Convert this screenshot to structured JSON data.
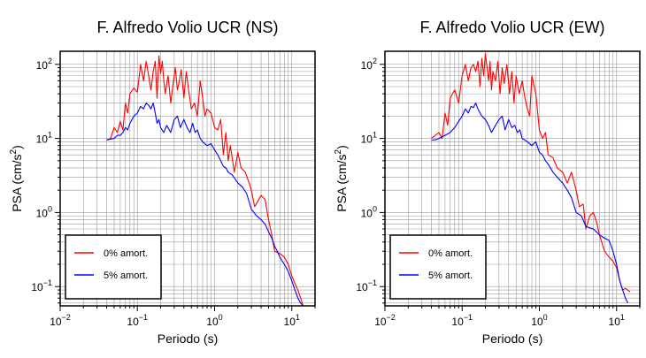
{
  "chart_data": [
    {
      "type": "line",
      "title": "F. Alfredo Volio UCR (NS)",
      "xlabel": "Periodo (s)",
      "ylabel_main": "PSA (cm/s",
      "ylabel_sup": "2",
      "ylabel_end": ")",
      "xscale": "log",
      "yscale": "log",
      "xlim": [
        0.01,
        20
      ],
      "ylim": [
        0.055,
        150
      ],
      "grid": true,
      "legend_position": "bottom-left",
      "x_ticks": [
        {
          "value": 0.01,
          "base": "10",
          "exp": "−2"
        },
        {
          "value": 0.1,
          "base": "10",
          "exp": "−1"
        },
        {
          "value": 1,
          "base": "10",
          "exp": "0"
        },
        {
          "value": 10,
          "base": "10",
          "exp": "1"
        }
      ],
      "y_ticks": [
        {
          "value": 0.1,
          "base": "10",
          "exp": "−1"
        },
        {
          "value": 1,
          "base": "10",
          "exp": "0"
        },
        {
          "value": 10,
          "base": "10",
          "exp": "1"
        },
        {
          "value": 100,
          "base": "10",
          "exp": "2"
        }
      ],
      "series": [
        {
          "name": "0% amort.",
          "color": "#ff0000",
          "x": [
            0.04,
            0.045,
            0.05,
            0.055,
            0.06,
            0.065,
            0.07,
            0.075,
            0.08,
            0.09,
            0.1,
            0.11,
            0.12,
            0.13,
            0.14,
            0.15,
            0.16,
            0.17,
            0.18,
            0.19,
            0.2,
            0.21,
            0.22,
            0.23,
            0.24,
            0.25,
            0.27,
            0.29,
            0.31,
            0.33,
            0.35,
            0.37,
            0.4,
            0.43,
            0.46,
            0.5,
            0.55,
            0.6,
            0.65,
            0.7,
            0.75,
            0.8,
            0.9,
            1.0,
            1.1,
            1.2,
            1.3,
            1.4,
            1.5,
            1.6,
            1.8,
            2.0,
            2.2,
            2.5,
            2.8,
            3.0,
            3.3,
            3.6,
            4.0,
            4.5,
            5.0,
            5.5,
            6.0,
            7.0,
            8.0,
            9.0,
            10.0,
            11.0,
            12.0,
            13.0,
            14.0
          ],
          "y": [
            9.5,
            10,
            14,
            12,
            17,
            13,
            30,
            22,
            40,
            48,
            42,
            100,
            60,
            110,
            70,
            45,
            80,
            110,
            35,
            130,
            75,
            110,
            60,
            40,
            55,
            70,
            30,
            55,
            90,
            45,
            60,
            85,
            35,
            80,
            45,
            25,
            30,
            20,
            60,
            35,
            20,
            25,
            22,
            14,
            13,
            18,
            6,
            12,
            5,
            8,
            3.5,
            6.5,
            4,
            3.5,
            2.5,
            2,
            1.2,
            1.4,
            1.7,
            1.5,
            0.8,
            0.5,
            0.3,
            0.28,
            0.25,
            0.2,
            0.14,
            0.11,
            0.09,
            0.07,
            0.055
          ]
        },
        {
          "name": "5% amort.",
          "color": "#0000ff",
          "x": [
            0.04,
            0.045,
            0.05,
            0.055,
            0.06,
            0.065,
            0.07,
            0.075,
            0.08,
            0.09,
            0.1,
            0.11,
            0.12,
            0.13,
            0.14,
            0.15,
            0.16,
            0.17,
            0.18,
            0.19,
            0.2,
            0.22,
            0.24,
            0.27,
            0.3,
            0.33,
            0.36,
            0.4,
            0.44,
            0.48,
            0.52,
            0.56,
            0.6,
            0.65,
            0.7,
            0.8,
            0.9,
            1.0,
            1.1,
            1.2,
            1.3,
            1.4,
            1.5,
            1.7,
            2.0,
            2.3,
            2.6,
            3.0,
            3.5,
            4.0,
            4.5,
            5.0,
            5.5,
            6.0,
            6.5,
            7.0,
            8.0,
            9.0,
            10.0,
            11.0,
            12.0,
            13.0,
            14.0
          ],
          "y": [
            9.5,
            9.8,
            10,
            11,
            11,
            12,
            14,
            13,
            16,
            20,
            22,
            27,
            25,
            30,
            28,
            25,
            30,
            22,
            16,
            18,
            14,
            12,
            15,
            12,
            18,
            20,
            14,
            18,
            14,
            12,
            16,
            12,
            13,
            10,
            9,
            8,
            8.5,
            7,
            6,
            5,
            4.2,
            4,
            3.5,
            3.2,
            2.5,
            2.2,
            1.8,
            1.1,
            0.9,
            0.8,
            0.7,
            0.55,
            0.45,
            0.35,
            0.3,
            0.25,
            0.2,
            0.16,
            0.12,
            0.09,
            0.07,
            0.06,
            0.055
          ]
        }
      ]
    },
    {
      "type": "line",
      "title": "F. Alfredo Volio UCR (EW)",
      "xlabel": "Periodo (s)",
      "ylabel_main": "PSA (cm/s",
      "ylabel_sup": "2",
      "ylabel_end": ")",
      "xscale": "log",
      "yscale": "log",
      "xlim": [
        0.01,
        20
      ],
      "ylim": [
        0.055,
        150
      ],
      "grid": true,
      "legend_position": "bottom-left",
      "x_ticks": [
        {
          "value": 0.01,
          "base": "10",
          "exp": "−2"
        },
        {
          "value": 0.1,
          "base": "10",
          "exp": "−1"
        },
        {
          "value": 1,
          "base": "10",
          "exp": "0"
        },
        {
          "value": 10,
          "base": "10",
          "exp": "1"
        }
      ],
      "y_ticks": [
        {
          "value": 0.1,
          "base": "10",
          "exp": "−1"
        },
        {
          "value": 1,
          "base": "10",
          "exp": "0"
        },
        {
          "value": 10,
          "base": "10",
          "exp": "1"
        },
        {
          "value": 100,
          "base": "10",
          "exp": "2"
        }
      ],
      "series": [
        {
          "name": "0% amort.",
          "color": "#ff0000",
          "x": [
            0.04,
            0.045,
            0.05,
            0.055,
            0.06,
            0.065,
            0.07,
            0.075,
            0.08,
            0.09,
            0.1,
            0.11,
            0.12,
            0.13,
            0.14,
            0.15,
            0.16,
            0.17,
            0.18,
            0.19,
            0.2,
            0.21,
            0.22,
            0.23,
            0.24,
            0.25,
            0.27,
            0.29,
            0.31,
            0.33,
            0.35,
            0.38,
            0.41,
            0.44,
            0.47,
            0.5,
            0.55,
            0.6,
            0.65,
            0.7,
            0.75,
            0.8,
            0.9,
            1.0,
            1.1,
            1.2,
            1.3,
            1.5,
            1.7,
            2.0,
            2.3,
            2.6,
            3.0,
            3.3,
            3.7,
            4.0,
            4.5,
            5.0,
            5.5,
            6.0,
            7.0,
            8.0,
            9.0,
            10.0,
            11.0,
            12.0,
            13.0,
            15.0
          ],
          "y": [
            10,
            11,
            12,
            10,
            22,
            15,
            35,
            40,
            45,
            30,
            70,
            100,
            60,
            90,
            100,
            80,
            110,
            50,
            120,
            70,
            140,
            90,
            60,
            110,
            45,
            80,
            60,
            110,
            40,
            90,
            55,
            100,
            40,
            80,
            30,
            70,
            40,
            60,
            35,
            25,
            20,
            70,
            40,
            13,
            10,
            12,
            6,
            5.5,
            4,
            3.5,
            2.5,
            3.5,
            2,
            1.2,
            1.3,
            0.6,
            0.9,
            1.0,
            0.75,
            0.5,
            0.3,
            0.25,
            0.22,
            0.18,
            0.12,
            0.09,
            0.095,
            0.085
          ]
        },
        {
          "name": "5% amort.",
          "color": "#0000ff",
          "x": [
            0.04,
            0.045,
            0.05,
            0.055,
            0.06,
            0.07,
            0.08,
            0.09,
            0.1,
            0.11,
            0.12,
            0.13,
            0.14,
            0.15,
            0.16,
            0.18,
            0.2,
            0.22,
            0.24,
            0.27,
            0.3,
            0.33,
            0.36,
            0.4,
            0.44,
            0.48,
            0.52,
            0.56,
            0.6,
            0.65,
            0.7,
            0.8,
            0.9,
            1.0,
            1.1,
            1.2,
            1.3,
            1.5,
            1.7,
            2.0,
            2.3,
            2.6,
            3.0,
            3.5,
            4.0,
            4.5,
            5.0,
            6.0,
            7.0,
            8.0,
            9.0,
            10.0,
            11.0,
            12.0,
            13.0,
            14.0
          ],
          "y": [
            9.5,
            9.6,
            10,
            10.5,
            11,
            12,
            14,
            17,
            20,
            25,
            22,
            27,
            26,
            30,
            25,
            20,
            18,
            15,
            12,
            15,
            18,
            20,
            13,
            18,
            14,
            15,
            12,
            13,
            10,
            9.5,
            9,
            8,
            9,
            6.5,
            6,
            5,
            4.5,
            3.5,
            3,
            2.5,
            2,
            1.6,
            1.0,
            0.9,
            0.65,
            0.62,
            0.6,
            0.5,
            0.45,
            0.42,
            0.3,
            0.2,
            0.12,
            0.09,
            0.07,
            0.06
          ]
        }
      ]
    }
  ]
}
